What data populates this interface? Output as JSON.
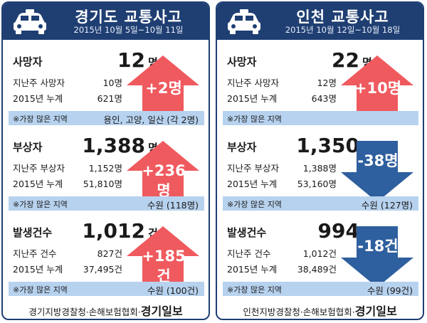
{
  "panels": [
    {
      "title": "경기도  교통사고",
      "period": "2015년 10월 5일~10월 11일",
      "sections": [
        {
          "label": "사망자",
          "value": "12",
          "unit": "명",
          "sub1_label": "지난주 사망자",
          "sub1_value": "10명",
          "sub2_label": "2015년 누계",
          "sub2_value": "621명",
          "change": "+2명",
          "direction": "up",
          "region_label": "※가장 많은 지역",
          "region_value": "용인, 고양, 일산 (각 2명)"
        },
        {
          "label": "부상자",
          "value": "1,388",
          "unit": "명",
          "sub1_label": "지난주 부상자",
          "sub1_value": "1,152명",
          "sub2_label": "2015년 누계",
          "sub2_value": "51,810명",
          "change": "+236명",
          "direction": "up",
          "region_label": "※가장 많은 지역",
          "region_value": "수원 (118명)"
        },
        {
          "label": "발생건수",
          "value": "1,012",
          "unit": "건",
          "sub1_label": "지난주 건수",
          "sub1_value": "827건",
          "sub2_label": "2015년 누계",
          "sub2_value": "37,495건",
          "change": "+185건",
          "direction": "up",
          "region_label": "※가장 많은 지역",
          "region_value": "수원 (100건)"
        }
      ],
      "footer_text": "경기지방경찰청·손해보험협회·",
      "footer_brand": "경기일보"
    },
    {
      "title": "인천  교통사고",
      "period": "2015년 10월 12일~10월 18일",
      "sections": [
        {
          "label": "사망자",
          "value": "22",
          "unit": "명",
          "sub1_label": "지난주 사망자",
          "sub1_value": "12명",
          "sub2_label": "2015년 누계",
          "sub2_value": "643명",
          "change": "+10명",
          "direction": "up",
          "region_label": "※가장 많은 지역",
          "region_value": ""
        },
        {
          "label": "부상자",
          "value": "1,350",
          "unit": "명",
          "sub1_label": "지난주 부상자",
          "sub1_value": "1,388명",
          "sub2_label": "2015년 누계",
          "sub2_value": "53,160명",
          "change": "-38명",
          "direction": "down",
          "region_label": "※가장 많은 지역",
          "region_value": "수원 (127명)"
        },
        {
          "label": "발생건수",
          "value": "994",
          "unit": "건",
          "sub1_label": "지난주 건수",
          "sub1_value": "1,012건",
          "sub2_label": "2015년 누계",
          "sub2_value": "38,489건",
          "change": "-18건",
          "direction": "down",
          "region_label": "※가장 많은 지역",
          "region_value": "수원 (99건)"
        }
      ],
      "footer_text": "인천지방경찰청·손해보험협회·",
      "footer_brand": "경기일보"
    }
  ],
  "colors": {
    "header": "#1f3f73",
    "up_arrow": "#ef5a5f",
    "down_arrow": "#2e5f9e",
    "region_bar": "#b7d2ee"
  },
  "icons": {
    "header": "police-car-icon"
  }
}
